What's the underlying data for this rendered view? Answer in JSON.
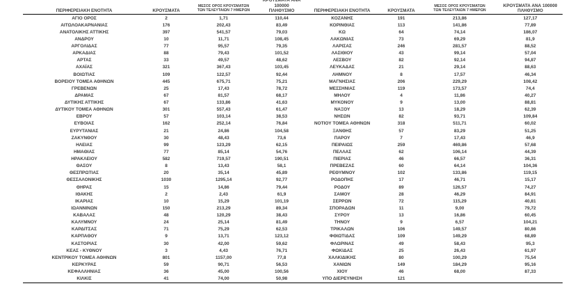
{
  "colors": {
    "text": "#3c3c3c",
    "rule": "#000000",
    "background": "#ffffff"
  },
  "table": {
    "headers": {
      "region": "ΠΕΡΙΦΕΡΕΙΑΚΗ ΕΝΟΤΗΤΑ",
      "cases": "ΚΡΟΥΣΜΑΤΑ",
      "avg7_line1": "ΜΕΣΟΣ ΟΡΟΣ ΚΡΟΥΣΜΑΤΩΝ",
      "avg7_line2": "ΤΩΝ ΤΕΛΕΥΤΑΙΩΝ 7 ΗΜΕΡΩΝ",
      "per100k_line1": "ΚΡΟΥΣΜΑΤΑ ΑΝΑ 100000",
      "per100k_line2": "ΠΛΗΘΥΣΜΟ"
    },
    "left_rows": [
      [
        "ΑΓΙΟ ΟΡΟΣ",
        "2",
        "1,71",
        "110,44"
      ],
      [
        "ΑΙΤΩΛΟΑΚΑΡΝΑΝΙΑΣ",
        "176",
        "202,43",
        "83,49"
      ],
      [
        "ΑΝΑΤΟΛΙΚΗΣ ΑΤΤΙΚΗΣ",
        "397",
        "541,57",
        "79,03"
      ],
      [
        "ΑΝΔΡΟΥ",
        "10",
        "11,71",
        "108,45"
      ],
      [
        "ΑΡΓΟΛΙΔΑΣ",
        "77",
        "95,57",
        "79,35"
      ],
      [
        "ΑΡΚΑΔΙΑΣ",
        "88",
        "79,43",
        "101,52"
      ],
      [
        "ΑΡΤΑΣ",
        "33",
        "49,57",
        "48,62"
      ],
      [
        "ΑΧΑΪΑΣ",
        "321",
        "367,43",
        "103,45"
      ],
      [
        "ΒΟΙΩΤΙΑΣ",
        "109",
        "122,57",
        "92,44"
      ],
      [
        "ΒΟΡΕΙΟΥ ΤΟΜΕΑ ΑΘΗΝΩΝ",
        "445",
        "675,71",
        "75,21"
      ],
      [
        "ΓΡΕΒΕΝΩΝ",
        "25",
        "17,43",
        "78,72"
      ],
      [
        "ΔΡΑΜΑΣ",
        "67",
        "81,57",
        "68,17"
      ],
      [
        "ΔΥΤΙΚΗΣ ΑΤΤΙΚΗΣ",
        "67",
        "133,86",
        "41,63"
      ],
      [
        "ΔΥΤΙΚΟΥ ΤΟΜΕΑ ΑΘΗΝΩΝ",
        "301",
        "557,43",
        "61,47"
      ],
      [
        "ΕΒΡΟΥ",
        "57",
        "103,14",
        "38,53"
      ],
      [
        "ΕΥΒΟΙΑΣ",
        "162",
        "252,14",
        "76,84"
      ],
      [
        "ΕΥΡΥΤΑΝΙΑΣ",
        "21",
        "24,86",
        "104,58"
      ],
      [
        "ΖΑΚΥΝΘΟΥ",
        "30",
        "48,43",
        "73,6"
      ],
      [
        "ΗΛΕΙΑΣ",
        "99",
        "123,29",
        "62,15"
      ],
      [
        "ΗΜΑΘΙΑΣ",
        "77",
        "85,14",
        "54,76"
      ],
      [
        "ΗΡΑΚΛΕΙΟΥ",
        "582",
        "719,57",
        "190,51"
      ],
      [
        "ΘΑΣΟΥ",
        "8",
        "13,43",
        "58,1"
      ],
      [
        "ΘΕΣΠΡΩΤΙΑΣ",
        "20",
        "35,14",
        "45,89"
      ],
      [
        "ΘΕΣΣΑΛΟΝΙΚΗΣ",
        "1030",
        "1295,14",
        "92,77"
      ],
      [
        "ΘΗΡΑΣ",
        "15",
        "14,86",
        "79,44"
      ],
      [
        "ΙΘΑΚΗΣ",
        "2",
        "2,43",
        "61,9"
      ],
      [
        "ΙΚΑΡΙΑΣ",
        "10",
        "15,29",
        "101,19"
      ],
      [
        "ΙΩΑΝΝΙΝΩΝ",
        "150",
        "213,29",
        "89,34"
      ],
      [
        "ΚΑΒΑΛΑΣ",
        "48",
        "120,29",
        "38,43"
      ],
      [
        "ΚΑΛΥΜΝΟΥ",
        "24",
        "25,14",
        "81,49"
      ],
      [
        "ΚΑΡΔΙΤΣΑΣ",
        "71",
        "75,29",
        "62,53"
      ],
      [
        "ΚΑΡΠΑΘΟΥ",
        "9",
        "13,71",
        "123,12"
      ],
      [
        "ΚΑΣΤΟΡΙΑΣ",
        "30",
        "42,00",
        "59,62"
      ],
      [
        "ΚΕΑΣ - ΚΥΘΝΟΥ",
        "3",
        "4,43",
        "76,71"
      ],
      [
        "ΚΕΝΤΡΙΚΟΥ ΤΟΜΕΑ ΑΘΗΝΩΝ",
        "801",
        "1157,00",
        "77,8"
      ],
      [
        "ΚΕΡΚΥΡΑΣ",
        "59",
        "90,71",
        "56,53"
      ],
      [
        "ΚΕΦΑΛΛΗΝΙΑΣ",
        "36",
        "45,00",
        "100,56"
      ],
      [
        "ΚΙΛΚΙΣ",
        "41",
        "74,00",
        "50,98"
      ]
    ],
    "right_rows": [
      [
        "ΚΟΖΑΝΗΣ",
        "191",
        "213,86",
        "127,17"
      ],
      [
        "ΚΟΡΙΝΘΙΑΣ",
        "113",
        "141,86",
        "77,89"
      ],
      [
        "ΚΩ",
        "64",
        "74,14",
        "186,07"
      ],
      [
        "ΛΑΚΩΝΙΑΣ",
        "73",
        "69,29",
        "81,9"
      ],
      [
        "ΛΑΡΙΣΑΣ",
        "246",
        "281,57",
        "88,52"
      ],
      [
        "ΛΑΣΙΘΙΟΥ",
        "43",
        "99,14",
        "57,04"
      ],
      [
        "ΛΕΣΒΟΥ",
        "82",
        "92,14",
        "94,87"
      ],
      [
        "ΛΕΥΚΑΔΑΣ",
        "21",
        "29,14",
        "88,63"
      ],
      [
        "ΛΗΜΝΟΥ",
        "8",
        "17,57",
        "46,34"
      ],
      [
        "ΜΑΓΝΗΣΙΑΣ",
        "206",
        "229,29",
        "108,42"
      ],
      [
        "ΜΕΣΣΗΝΙΑΣ",
        "119",
        "173,57",
        "74,4"
      ],
      [
        "ΜΗΛΟΥ",
        "4",
        "11,86",
        "40,27"
      ],
      [
        "ΜΥΚΟΝΟΥ",
        "9",
        "13,00",
        "88,81"
      ],
      [
        "ΝΑΞΟΥ",
        "13",
        "18,29",
        "62,39"
      ],
      [
        "ΝΗΣΩΝ",
        "82",
        "93,71",
        "109,84"
      ],
      [
        "ΝΟΤΙΟΥ ΤΟΜΕΑ ΑΘΗΝΩΝ",
        "318",
        "511,71",
        "60,02"
      ],
      [
        "ΞΑΝΘΗΣ",
        "57",
        "83,29",
        "51,25"
      ],
      [
        "ΠΑΡΟΥ",
        "7",
        "17,43",
        "46,9"
      ],
      [
        "ΠΕΙΡΑΙΩΣ",
        "259",
        "469,86",
        "57,68"
      ],
      [
        "ΠΕΛΛΑΣ",
        "62",
        "106,14",
        "44,39"
      ],
      [
        "ΠΙΕΡΙΑΣ",
        "46",
        "66,57",
        "36,31"
      ],
      [
        "ΠΡΕΒΕΖΑΣ",
        "60",
        "64,14",
        "104,36"
      ],
      [
        "ΡΕΘΥΜΝΟΥ",
        "102",
        "133,86",
        "119,15"
      ],
      [
        "ΡΟΔΟΠΗΣ",
        "17",
        "46,71",
        "15,17"
      ],
      [
        "ΡΟΔΟΥ",
        "89",
        "126,57",
        "74,27"
      ],
      [
        "ΣΑΜΟΥ",
        "28",
        "46,29",
        "84,91"
      ],
      [
        "ΣΕΡΡΩΝ",
        "72",
        "115,29",
        "40,81"
      ],
      [
        "ΣΠΟΡΑΔΩΝ",
        "11",
        "9,00",
        "79,72"
      ],
      [
        "ΣΥΡΟΥ",
        "13",
        "16,86",
        "60,45"
      ],
      [
        "ΤΗΝΟΥ",
        "9",
        "6,57",
        "104,21"
      ],
      [
        "ΤΡΙΚΑΛΩΝ",
        "106",
        "149,57",
        "80,86"
      ],
      [
        "ΦΘΙΩΤΙΔΑΣ",
        "109",
        "149,29",
        "68,89"
      ],
      [
        "ΦΛΩΡΙΝΑΣ",
        "49",
        "58,43",
        "95,3"
      ],
      [
        "ΦΩΚΙΔΑΣ",
        "25",
        "26,43",
        "61,97"
      ],
      [
        "ΧΑΛΚΙΔΙΚΗΣ",
        "80",
        "100,29",
        "75,54"
      ],
      [
        "ΧΑΝΙΩΝ",
        "149",
        "184,29",
        "95,16"
      ],
      [
        "ΧΙΟΥ",
        "46",
        "68,00",
        "87,33"
      ],
      [
        "ΥΠΟ ΔΙΕΡΕΥΝΗΣΗ",
        "121",
        "",
        ""
      ]
    ]
  }
}
